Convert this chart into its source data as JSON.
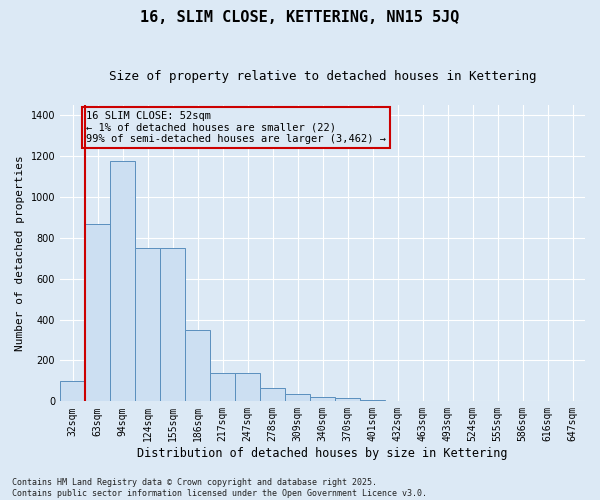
{
  "title": "16, SLIM CLOSE, KETTERING, NN15 5JQ",
  "subtitle": "Size of property relative to detached houses in Kettering",
  "xlabel": "Distribution of detached houses by size in Kettering",
  "ylabel": "Number of detached properties",
  "categories": [
    "32sqm",
    "63sqm",
    "94sqm",
    "124sqm",
    "155sqm",
    "186sqm",
    "217sqm",
    "247sqm",
    "278sqm",
    "309sqm",
    "340sqm",
    "370sqm",
    "401sqm",
    "432sqm",
    "463sqm",
    "493sqm",
    "524sqm",
    "555sqm",
    "586sqm",
    "616sqm",
    "647sqm"
  ],
  "values": [
    100,
    870,
    1175,
    750,
    750,
    350,
    140,
    140,
    65,
    35,
    20,
    15,
    8,
    0,
    0,
    0,
    0,
    0,
    0,
    0,
    0
  ],
  "bar_color": "#ccdff2",
  "bar_edge_color": "#5a8fbe",
  "vline_color": "#cc0000",
  "vline_x": 0.5,
  "annotation_text": "16 SLIM CLOSE: 52sqm\n← 1% of detached houses are smaller (22)\n99% of semi-detached houses are larger (3,462) →",
  "annotation_box_color": "#cc0000",
  "annotation_bg_color": "#dce9f5",
  "ylim": [
    0,
    1450
  ],
  "yticks": [
    0,
    200,
    400,
    600,
    800,
    1000,
    1200,
    1400
  ],
  "bg_color": "#dce9f5",
  "plot_bg_color": "#dce9f5",
  "grid_color": "#ffffff",
  "footer_text": "Contains HM Land Registry data © Crown copyright and database right 2025.\nContains public sector information licensed under the Open Government Licence v3.0.",
  "title_fontsize": 11,
  "subtitle_fontsize": 9,
  "tick_fontsize": 7,
  "ylabel_fontsize": 8,
  "xlabel_fontsize": 8.5,
  "annotation_fontsize": 7.5,
  "footer_fontsize": 6
}
